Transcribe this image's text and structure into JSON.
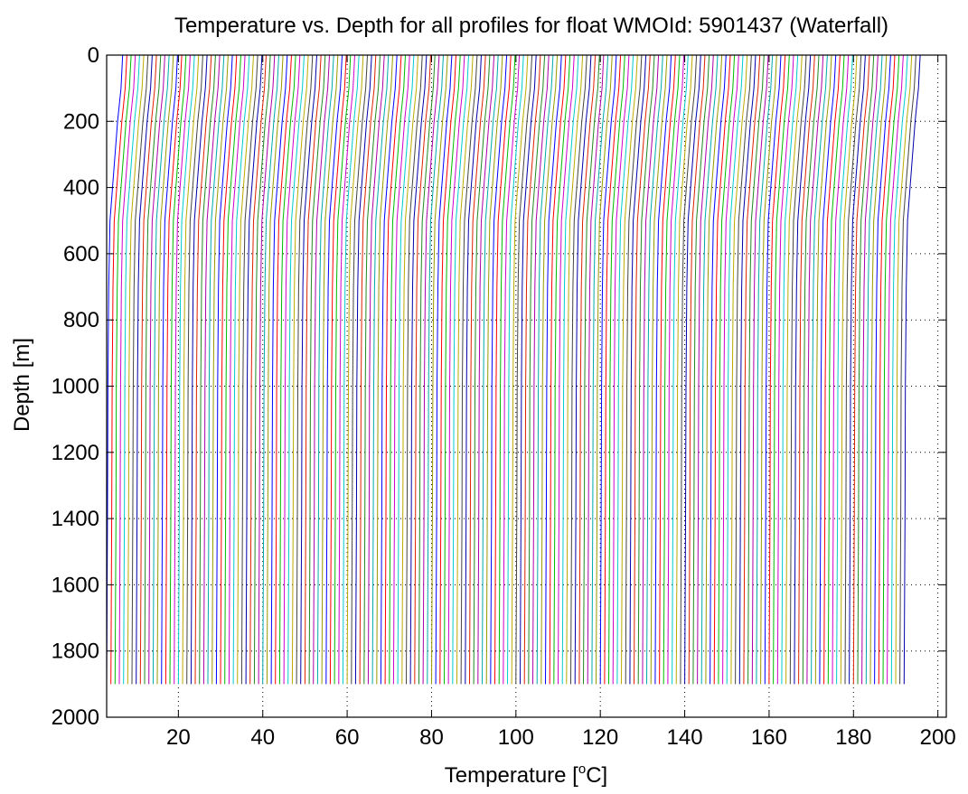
{
  "chart_data": {
    "type": "line",
    "title": "Temperature vs. Depth for all profiles for float WMOId: 5901437 (Waterfall)",
    "xlabel": "Temperature [",
    "xlabel_sup": "o",
    "xlabel_suffix": "C]",
    "ylabel": "Depth [m]",
    "xlim": [
      3,
      202
    ],
    "ylim": [
      0,
      2000
    ],
    "y_reversed": true,
    "grid": "dotted",
    "xticks": [
      20,
      40,
      60,
      80,
      100,
      120,
      140,
      160,
      180,
      200
    ],
    "yticks": [
      0,
      200,
      400,
      600,
      800,
      1000,
      1200,
      1400,
      1600,
      1800,
      2000
    ],
    "series_colors": [
      "#0000ff",
      "#ff0000",
      "#00bb00",
      "#cc00cc",
      "#00cccc",
      "#bbaa00",
      "#444444",
      "#0000aa",
      "#dd2200",
      "#228822",
      "#aa00aa",
      "#00aaaa",
      "#999900"
    ],
    "profile_count": 190,
    "profile_offset_step": 1,
    "profile_shape": {
      "depth": [
        0,
        50,
        100,
        150,
        200,
        300,
        400,
        500,
        700,
        1000,
        1400,
        1900
      ],
      "temperature": [
        3.8,
        3.6,
        3.4,
        3.0,
        2.6,
        2.0,
        1.4,
        0.8,
        0.5,
        0.3,
        0.2,
        0.0
      ]
    }
  }
}
